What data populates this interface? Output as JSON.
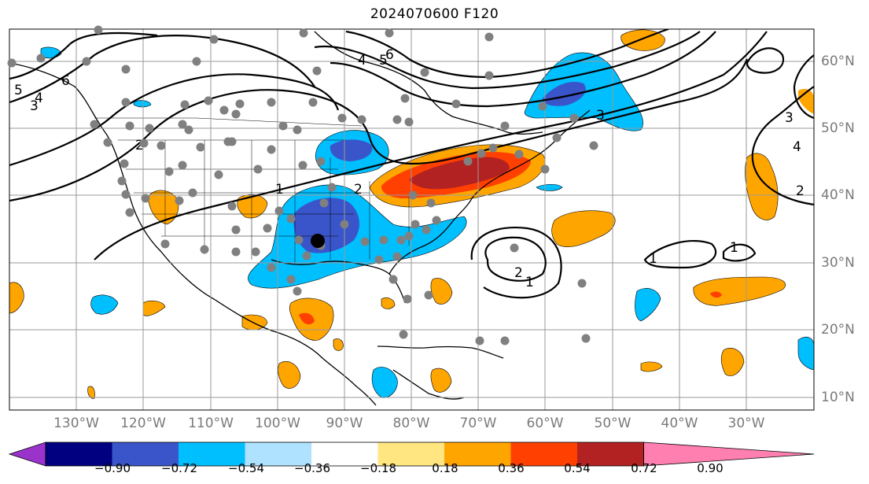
{
  "title": "2024070600 F120",
  "colors": {
    "land": "#ffffff",
    "ocean": "#ffffff",
    "grid": "#9a9a9a",
    "stations": "#808080",
    "contour": "#000000"
  },
  "lon_labels": [
    "130°W",
    "120°W",
    "110°W",
    "100°W",
    "90°W",
    "80°W",
    "70°W",
    "60°W",
    "50°W",
    "40°W",
    "30°W"
  ],
  "lat_labels": [
    "60°N",
    "50°N",
    "40°N",
    "30°N",
    "20°N",
    "10°N"
  ],
  "colorbar": {
    "labels": [
      "−0.90",
      "−0.72",
      "−0.54",
      "−0.36",
      "−0.18",
      "0.18",
      "0.36",
      "0.54",
      "0.72",
      "0.90"
    ],
    "colors": [
      "#9933cc",
      "#000080",
      "#3a54c9",
      "#00bfff",
      "#aee2ff",
      "#ffffff",
      "#ffe680",
      "#ffa500",
      "#ff4000",
      "#b22222",
      "#ff80b0"
    ]
  },
  "contour_labels": [
    "5",
    "6",
    "4",
    "3",
    "2",
    "1",
    "6",
    "5",
    "4",
    "3",
    "2",
    "1",
    "2",
    "3",
    "4",
    "2",
    "1",
    "1"
  ],
  "marker": "selected-point"
}
